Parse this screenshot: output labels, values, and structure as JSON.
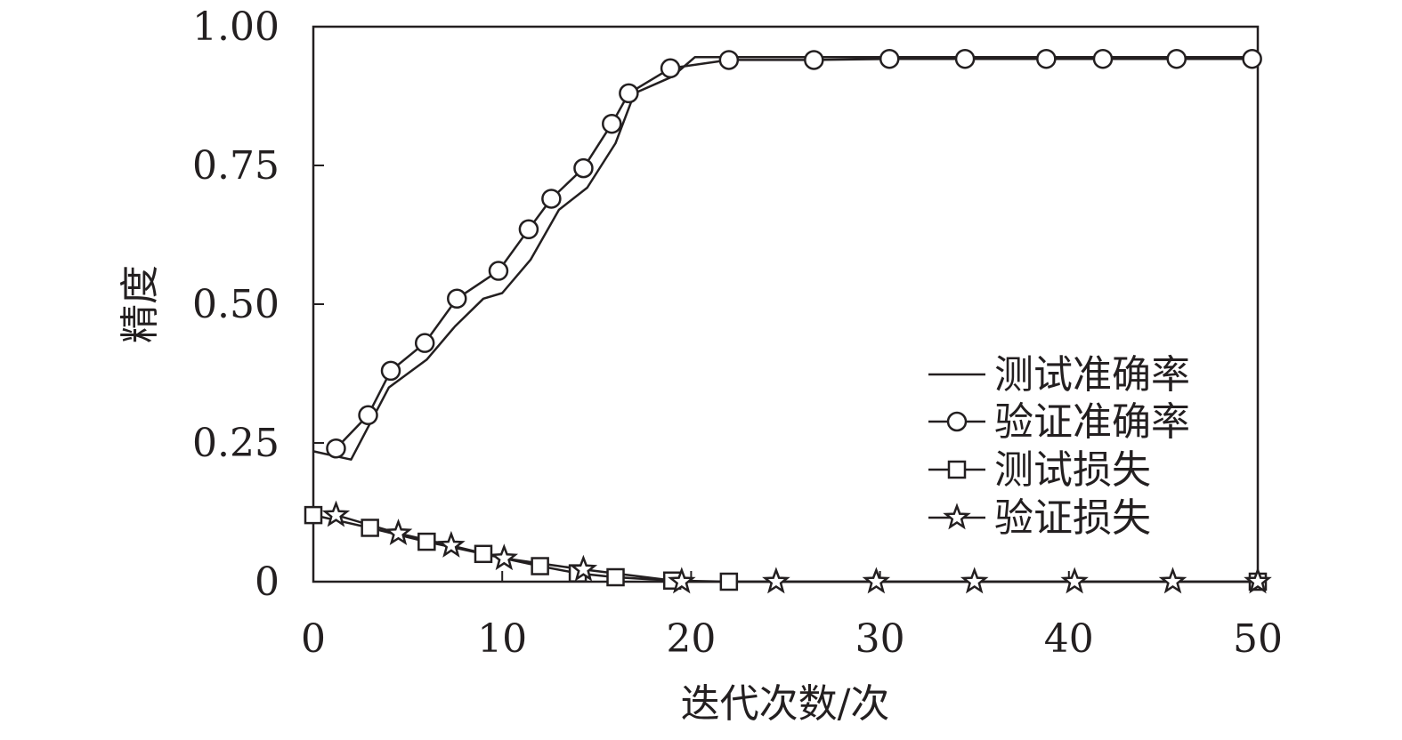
{
  "chart_data": {
    "type": "line",
    "xlabel": "迭代次数/次",
    "ylabel": "精度",
    "xlim": [
      0,
      50
    ],
    "ylim": [
      0,
      1.0
    ],
    "x_ticks": [
      0,
      10,
      20,
      30,
      40,
      50
    ],
    "x_tick_labels": [
      "0",
      "10",
      "20",
      "30",
      "40",
      "50"
    ],
    "y_ticks": [
      0,
      0.25,
      0.5,
      0.75,
      1.0
    ],
    "y_tick_labels": [
      "0",
      "0.25",
      "0.50",
      "0.75",
      "1.00"
    ],
    "grid": false,
    "legend_position": "lower-right",
    "line_color": "#231f20",
    "series": [
      {
        "name": "测试准确率",
        "marker": "none",
        "points": [
          [
            0,
            0.235
          ],
          [
            2,
            0.22
          ],
          [
            4,
            0.35
          ],
          [
            6,
            0.4
          ],
          [
            7.5,
            0.46
          ],
          [
            9,
            0.51
          ],
          [
            10,
            0.52
          ],
          [
            11.5,
            0.58
          ],
          [
            13,
            0.67
          ],
          [
            14.5,
            0.71
          ],
          [
            16,
            0.79
          ],
          [
            17,
            0.88
          ],
          [
            19,
            0.91
          ],
          [
            20.2,
            0.945
          ],
          [
            50,
            0.945
          ]
        ]
      },
      {
        "name": "验证准确率",
        "marker": "circle",
        "points": [
          [
            1.2,
            0.24
          ],
          [
            2.9,
            0.3
          ],
          [
            4.1,
            0.38
          ],
          [
            5.9,
            0.43
          ],
          [
            7.6,
            0.51
          ],
          [
            9.8,
            0.56
          ],
          [
            11.4,
            0.635
          ],
          [
            12.6,
            0.69
          ],
          [
            14.3,
            0.745
          ],
          [
            15.8,
            0.825
          ],
          [
            16.7,
            0.88
          ],
          [
            18.9,
            0.925
          ],
          [
            22,
            0.94
          ],
          [
            26.5,
            0.94
          ],
          [
            30.5,
            0.942
          ],
          [
            34.5,
            0.942
          ],
          [
            38.8,
            0.942
          ],
          [
            41.8,
            0.942
          ],
          [
            45.7,
            0.942
          ],
          [
            49.7,
            0.942
          ]
        ]
      },
      {
        "name": "测试损失",
        "marker": "square",
        "points": [
          [
            0,
            0.12
          ],
          [
            3,
            0.097
          ],
          [
            6,
            0.072
          ],
          [
            9,
            0.05
          ],
          [
            12,
            0.028
          ],
          [
            14,
            0.015
          ],
          [
            16,
            0.008
          ],
          [
            19,
            0.002
          ],
          [
            22,
            0
          ],
          [
            50,
            0
          ]
        ]
      },
      {
        "name": "验证损失",
        "marker": "star",
        "points": [
          [
            1.2,
            0.12
          ],
          [
            4.5,
            0.087
          ],
          [
            7.3,
            0.065
          ],
          [
            10.1,
            0.042
          ],
          [
            14.3,
            0.022
          ],
          [
            19.5,
            0
          ],
          [
            24.5,
            0
          ],
          [
            29.8,
            0
          ],
          [
            35,
            0
          ],
          [
            40.3,
            0
          ],
          [
            45.5,
            0
          ],
          [
            50,
            0
          ]
        ]
      }
    ]
  }
}
